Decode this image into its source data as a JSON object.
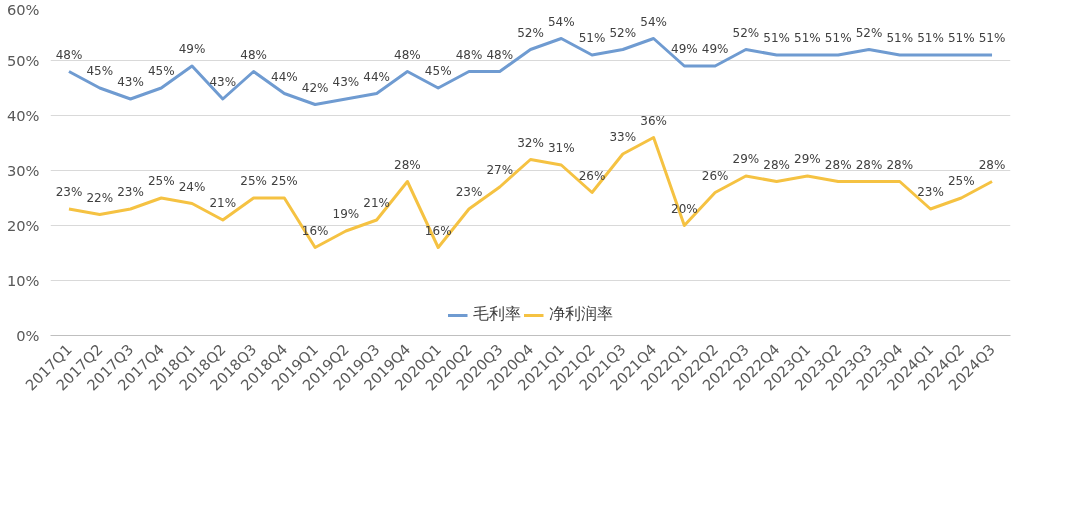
{
  "chart_data": {
    "type": "line",
    "categories": [
      "2017Q1",
      "2017Q2",
      "2017Q3",
      "2017Q4",
      "2018Q1",
      "2018Q2",
      "2018Q3",
      "2018Q4",
      "2019Q1",
      "2019Q2",
      "2019Q3",
      "2019Q4",
      "2020Q1",
      "2020Q2",
      "2020Q3",
      "2020Q4",
      "2021Q1",
      "2021Q2",
      "2021Q3",
      "2021Q4",
      "2022Q1",
      "2022Q2",
      "2022Q3",
      "2022Q4",
      "2023Q1",
      "2023Q2",
      "2023Q3",
      "2023Q4",
      "2024Q1",
      "2024Q2",
      "2024Q3"
    ],
    "series": [
      {
        "name": "毛利率",
        "color": "#6f9bd1",
        "values": [
          48,
          45,
          43,
          45,
          49,
          43,
          48,
          44,
          42,
          43,
          44,
          48,
          45,
          48,
          48,
          52,
          54,
          51,
          52,
          54,
          49,
          49,
          52,
          51,
          51,
          51,
          52,
          51,
          51,
          51,
          51
        ],
        "value_labels": [
          "48%",
          "45%",
          "43%",
          "45%",
          "49%",
          "43%",
          "48%",
          "44%",
          "42%",
          "43%",
          "44%",
          "48%",
          "45%",
          "48%",
          "48%",
          "52%",
          "54%",
          "51%",
          "52%",
          "54%",
          "49%",
          "49%",
          "52%",
          "51%",
          "51%",
          "51%",
          "52%",
          "51%",
          "51%",
          "51%",
          "51%"
        ]
      },
      {
        "name": "净利润率",
        "color": "#f5c242",
        "values": [
          23,
          22,
          23,
          25,
          24,
          21,
          25,
          25,
          16,
          19,
          21,
          28,
          16,
          23,
          27,
          32,
          31,
          26,
          33,
          36,
          20,
          26,
          29,
          28,
          29,
          28,
          28,
          28,
          23,
          25,
          28
        ],
        "value_labels": [
          "23%",
          "22%",
          "23%",
          "25%",
          "24%",
          "21%",
          "25%",
          "25%",
          "16%",
          "19%",
          "21%",
          "28%",
          "16%",
          "23%",
          "27%",
          "32%",
          "31%",
          "26%",
          "33%",
          "36%",
          "20%",
          "26%",
          "29%",
          "28%",
          "29%",
          "28%",
          "28%",
          "28%",
          "23%",
          "25%",
          "28%"
        ]
      }
    ],
    "ylim": [
      0,
      60
    ],
    "yticks": [
      {
        "value": 0,
        "label": "0%"
      },
      {
        "value": 10,
        "label": "10%"
      },
      {
        "value": 20,
        "label": "20%"
      },
      {
        "value": 30,
        "label": "30%"
      },
      {
        "value": 40,
        "label": "40%"
      },
      {
        "value": 50,
        "label": "50%"
      },
      {
        "value": 60,
        "label": "60%"
      }
    ],
    "grid": "y",
    "legend": "bottom",
    "marker": "none",
    "line_style": "solid"
  }
}
